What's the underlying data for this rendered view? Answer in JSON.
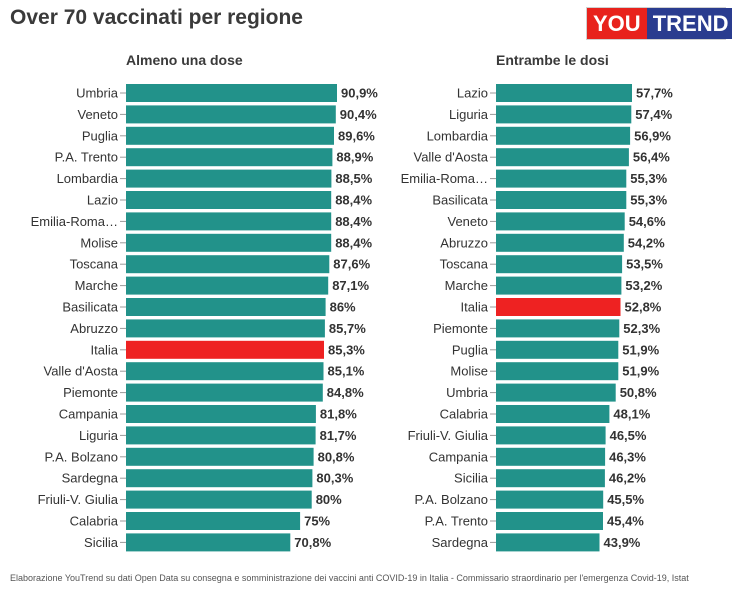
{
  "header": {
    "title": "Over 70 vaccinati per regione",
    "logo_you": "YOU",
    "logo_trend": "TREND"
  },
  "colors": {
    "bar": "#22928a",
    "highlight": "#ee2222",
    "tick": "#999999"
  },
  "chart_data": [
    {
      "type": "bar",
      "orientation": "horizontal",
      "title": "Almeno una dose",
      "xlim": [
        0,
        100
      ],
      "highlight": "Italia",
      "categories": [
        "Umbria",
        "Veneto",
        "Puglia",
        "P.A. Trento",
        "Lombardia",
        "Lazio",
        "Emilia-Roma…",
        "Molise",
        "Toscana",
        "Marche",
        "Basilicata",
        "Abruzzo",
        "Italia",
        "Valle d'Aosta",
        "Piemonte",
        "Campania",
        "Liguria",
        "P.A. Bolzano",
        "Sardegna",
        "Friuli-V. Giulia",
        "Calabria",
        "Sicilia"
      ],
      "values": [
        90.9,
        90.4,
        89.6,
        88.9,
        88.5,
        88.4,
        88.4,
        88.4,
        87.6,
        87.1,
        86,
        85.7,
        85.3,
        85.1,
        84.8,
        81.8,
        81.7,
        80.8,
        80.3,
        80,
        75,
        70.8
      ],
      "value_labels": [
        "90,9%",
        "90,4%",
        "89,6%",
        "88,9%",
        "88,5%",
        "88,4%",
        "88,4%",
        "88,4%",
        "87,6%",
        "87,1%",
        "86%",
        "85,7%",
        "85,3%",
        "85,1%",
        "84,8%",
        "81,8%",
        "81,7%",
        "80,8%",
        "80,3%",
        "80%",
        "75%",
        "70,8%"
      ]
    },
    {
      "type": "bar",
      "orientation": "horizontal",
      "title": "Entrambe le dosi",
      "xlim": [
        0,
        100
      ],
      "highlight": "Italia",
      "categories": [
        "Lazio",
        "Liguria",
        "Lombardia",
        "Valle d'Aosta",
        "Emilia-Roma…",
        "Basilicata",
        "Veneto",
        "Abruzzo",
        "Toscana",
        "Marche",
        "Italia",
        "Piemonte",
        "Puglia",
        "Molise",
        "Umbria",
        "Calabria",
        "Friuli-V. Giulia",
        "Campania",
        "Sicilia",
        "P.A. Bolzano",
        "P.A. Trento",
        "Sardegna"
      ],
      "values": [
        57.7,
        57.4,
        56.9,
        56.4,
        55.3,
        55.3,
        54.6,
        54.2,
        53.5,
        53.2,
        52.8,
        52.3,
        51.9,
        51.9,
        50.8,
        48.1,
        46.5,
        46.3,
        46.2,
        45.5,
        45.4,
        43.9
      ],
      "value_labels": [
        "57,7%",
        "57,4%",
        "56,9%",
        "56,4%",
        "55,3%",
        "55,3%",
        "54,6%",
        "54,2%",
        "53,5%",
        "53,2%",
        "52,8%",
        "52,3%",
        "51,9%",
        "51,9%",
        "50,8%",
        "48,1%",
        "46,5%",
        "46,3%",
        "46,2%",
        "45,5%",
        "45,4%",
        "43,9%"
      ]
    }
  ],
  "footer": {
    "source": "Elaborazione YouTrend su dati Open Data su consegna e somministrazione dei vaccini anti COVID-19 in Italia - Commissario straordinario per l'emergenza Covid-19, Istat"
  }
}
